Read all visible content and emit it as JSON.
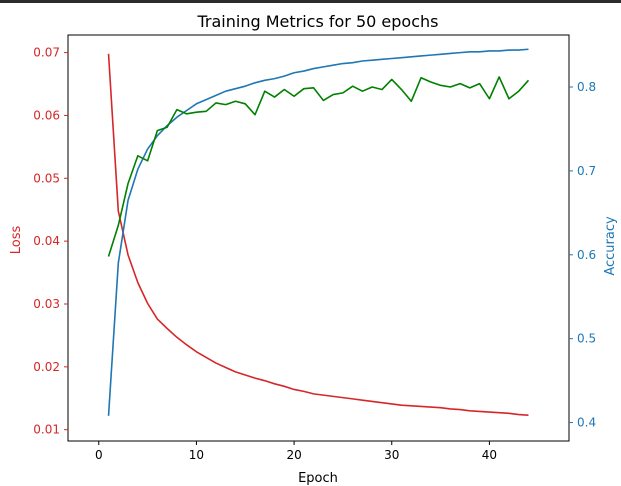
{
  "chart_data": {
    "type": "line",
    "title": "Training Metrics for 50 epochs",
    "xlabel": "Epoch",
    "ylabel_left": "Loss",
    "ylabel_right": "Accuracy",
    "xlim": [
      -3.15,
      48.15
    ],
    "ylim_left": [
      0.0082,
      0.0728
    ],
    "ylim_right": [
      0.378,
      0.862
    ],
    "x_ticks": [
      0,
      10,
      20,
      30,
      40
    ],
    "y_left_ticks": [
      0.01,
      0.02,
      0.03,
      0.04,
      0.05,
      0.06,
      0.07
    ],
    "y_right_ticks": [
      0.4,
      0.5,
      0.6,
      0.7,
      0.8
    ],
    "colors": {
      "loss": "#d62728",
      "accuracy": "#1f77b4",
      "val_accuracy": "#008000"
    },
    "x": [
      1,
      2,
      3,
      4,
      5,
      6,
      7,
      8,
      9,
      10,
      11,
      12,
      13,
      14,
      15,
      16,
      17,
      18,
      19,
      20,
      21,
      22,
      23,
      24,
      25,
      26,
      27,
      28,
      29,
      30,
      31,
      32,
      33,
      34,
      35,
      36,
      37,
      38,
      39,
      40,
      41,
      42,
      43,
      44
    ],
    "series": [
      {
        "key": "loss",
        "axis": "left",
        "values": [
          0.0698,
          0.0448,
          0.0378,
          0.0334,
          0.0301,
          0.0276,
          0.0261,
          0.0247,
          0.0235,
          0.0224,
          0.0215,
          0.0206,
          0.0199,
          0.0192,
          0.0187,
          0.0182,
          0.0178,
          0.0173,
          0.0169,
          0.0164,
          0.0161,
          0.0157,
          0.0155,
          0.0153,
          0.0151,
          0.0149,
          0.0147,
          0.0145,
          0.0143,
          0.0141,
          0.0139,
          0.0138,
          0.0137,
          0.0136,
          0.0135,
          0.0133,
          0.0132,
          0.013,
          0.0129,
          0.0128,
          0.0127,
          0.0126,
          0.0124,
          0.0123
        ]
      },
      {
        "key": "accuracy",
        "axis": "right",
        "values": [
          0.408,
          0.59,
          0.665,
          0.702,
          0.726,
          0.742,
          0.754,
          0.764,
          0.772,
          0.78,
          0.785,
          0.79,
          0.795,
          0.798,
          0.801,
          0.805,
          0.808,
          0.81,
          0.813,
          0.817,
          0.819,
          0.822,
          0.824,
          0.826,
          0.828,
          0.829,
          0.831,
          0.832,
          0.833,
          0.834,
          0.835,
          0.836,
          0.837,
          0.838,
          0.839,
          0.84,
          0.841,
          0.842,
          0.842,
          0.843,
          0.843,
          0.844,
          0.844,
          0.845
        ]
      },
      {
        "key": "val_accuracy",
        "axis": "right",
        "values": [
          0.598,
          0.635,
          0.685,
          0.718,
          0.712,
          0.748,
          0.752,
          0.773,
          0.768,
          0.77,
          0.771,
          0.781,
          0.779,
          0.783,
          0.78,
          0.767,
          0.795,
          0.788,
          0.797,
          0.789,
          0.798,
          0.799,
          0.784,
          0.791,
          0.793,
          0.801,
          0.795,
          0.8,
          0.797,
          0.809,
          0.797,
          0.783,
          0.811,
          0.806,
          0.802,
          0.8,
          0.804,
          0.799,
          0.804,
          0.786,
          0.812,
          0.786,
          0.795,
          0.808
        ]
      }
    ]
  }
}
